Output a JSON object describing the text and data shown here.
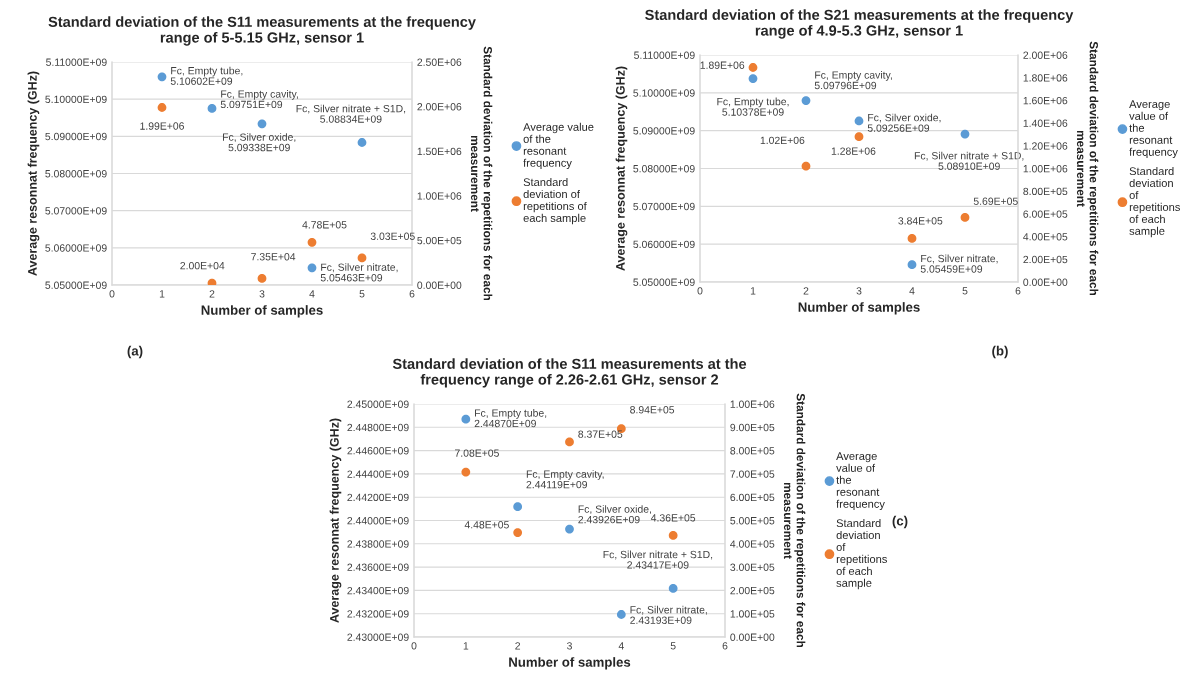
{
  "chart_data": [
    {
      "type": "scatter",
      "title": "Standard deviation of the S11 measurements at the frequency range of 5-5.15 GHz, sensor 1",
      "xlabel": "Number of samples",
      "ylabel": "Average resonnat frequency (GHz)",
      "y2label": "Standard deviation of the repetitions for each measurement",
      "annotations": [
        "(a)"
      ],
      "x": [
        1,
        2,
        3,
        4,
        5
      ],
      "series": [
        {
          "name": "Average value of the resonant frequency",
          "color": "#5b9bd5",
          "values": [
            5106020000,
            5097510000,
            5093380000,
            5054630000,
            5088340000
          ],
          "value_labels": [
            "Fc, Empty tube,\n5.10602E+09",
            "Fc, Empty cavity,\n5.09751E+09",
            "Fc, Silver oxide,\n5.09338E+09",
            "Fc, Silver nitrate,\n5.05463E+09",
            "Fc, Silver nitrate + S1D,\n5.08834E+09"
          ]
        },
        {
          "name": "Standard deviation of repetitions of each sample",
          "color": "#ed7d31",
          "axis": "y2",
          "values": [
            1990000,
            20000,
            73500,
            478000,
            303000
          ],
          "value_labels": [
            "1.99E+06",
            "2.00E+04",
            "7.35E+04",
            "4.78E+05",
            "3.03E+05"
          ]
        }
      ],
      "xlim": [
        0,
        6
      ],
      "xticks": [
        0,
        1,
        2,
        3,
        4,
        5,
        6
      ],
      "ylim": [
        5050000000,
        5110000000
      ],
      "yticks": [
        {
          "value": 5050000000,
          "label": "5.05000E+09"
        },
        {
          "value": 5060000000,
          "label": "5.06000E+09"
        },
        {
          "value": 5070000000,
          "label": "5.07000E+09"
        },
        {
          "value": 5080000000,
          "label": "5.08000E+09"
        },
        {
          "value": 5090000000,
          "label": "5.09000E+09"
        },
        {
          "value": 5100000000,
          "label": "5.10000E+09"
        },
        {
          "value": 5110000000,
          "label": "5.11000E+09"
        }
      ],
      "y2lim": [
        0,
        2500000
      ],
      "y2ticks": [
        {
          "value": 0,
          "label": "0.00E+00"
        },
        {
          "value": 500000,
          "label": "5.00E+05"
        },
        {
          "value": 1000000,
          "label": "1.00E+06"
        },
        {
          "value": 1500000,
          "label": "1.50E+06"
        },
        {
          "value": 2000000,
          "label": "2.00E+06"
        },
        {
          "value": 2500000,
          "label": "2.50E+06"
        }
      ],
      "grid": "y",
      "legend": "right",
      "marker": "circle"
    },
    {
      "type": "scatter",
      "title": "Standard deviation of the S21 measurements at the frequency range of 4.9-5.3 GHz, sensor 1",
      "xlabel": "Number of samples",
      "ylabel": "Average resonnat frequency (GHz)",
      "y2label": "Standard deviation of the repetitions for each measurement",
      "annotations": [
        "(b)"
      ],
      "x": [
        1,
        2,
        3,
        4,
        5
      ],
      "series": [
        {
          "name": "Average value of the resonant frequency",
          "color": "#5b9bd5",
          "values": [
            5103780000,
            5097960000,
            5092560000,
            5054590000,
            5089100000
          ],
          "value_labels": [
            "Fc, Empty tube,\n5.10378E+09",
            "Fc, Empty cavity,\n5.09796E+09",
            "Fc, Silver oxide,\n5.09256E+09",
            "Fc, Silver nitrate,\n5.05459E+09",
            "Fc, Silver nitrate + S1D,\n5.08910E+09"
          ]
        },
        {
          "name": "Standard deviation of repetitions of each sample",
          "color": "#ed7d31",
          "axis": "y2",
          "values": [
            1890000,
            1020000,
            1280000,
            384000,
            569000
          ],
          "value_labels": [
            "1.89E+06",
            "1.02E+06",
            "1.28E+06",
            "3.84E+05",
            "5.69E+05"
          ]
        }
      ],
      "xlim": [
        0,
        6
      ],
      "xticks": [
        0,
        1,
        2,
        3,
        4,
        5,
        6
      ],
      "ylim": [
        5050000000,
        5110000000
      ],
      "yticks": [
        {
          "value": 5050000000,
          "label": "5.05000E+09"
        },
        {
          "value": 5060000000,
          "label": "5.06000E+09"
        },
        {
          "value": 5070000000,
          "label": "5.07000E+09"
        },
        {
          "value": 5080000000,
          "label": "5.08000E+09"
        },
        {
          "value": 5090000000,
          "label": "5.09000E+09"
        },
        {
          "value": 5100000000,
          "label": "5.10000E+09"
        },
        {
          "value": 5110000000,
          "label": "5.11000E+09"
        }
      ],
      "y2lim": [
        0,
        2000000
      ],
      "y2ticks": [
        {
          "value": 0,
          "label": "0.00E+00"
        },
        {
          "value": 200000,
          "label": "2.00E+05"
        },
        {
          "value": 400000,
          "label": "4.00E+05"
        },
        {
          "value": 600000,
          "label": "6.00E+05"
        },
        {
          "value": 800000,
          "label": "8.00E+05"
        },
        {
          "value": 1000000,
          "label": "1.00E+06"
        },
        {
          "value": 1200000,
          "label": "1.20E+06"
        },
        {
          "value": 1400000,
          "label": "1.40E+06"
        },
        {
          "value": 1600000,
          "label": "1.60E+06"
        },
        {
          "value": 1800000,
          "label": "1.80E+06"
        },
        {
          "value": 2000000,
          "label": "2.00E+06"
        }
      ],
      "grid": "y",
      "legend": "right",
      "marker": "circle"
    },
    {
      "type": "scatter",
      "title": "Standard deviation of the S11 measurements at the frequency range of 2.26-2.61 GHz, sensor 2",
      "xlabel": "Number of samples",
      "ylabel": "Average resonnat frequency (GHz)",
      "y2label": "Standard deviation of the repetitions for each measurement",
      "annotations": [
        "(c)"
      ],
      "x": [
        1,
        2,
        3,
        4,
        5
      ],
      "series": [
        {
          "name": "Average value of the resonant frequency",
          "color": "#5b9bd5",
          "values": [
            2448700000,
            2441190000,
            2439260000,
            2431930000,
            2434170000
          ],
          "value_labels": [
            "Fc, Empty tube,\n2.44870E+09",
            "Fc, Empty cavity,\n2.44119E+09",
            "Fc, Silver oxide,\n2.43926E+09",
            "Fc, Silver nitrate,\n2.43193E+09",
            "Fc, Silver nitrate + S1D,\n2.43417E+09"
          ]
        },
        {
          "name": "Standard deviation of repetitions of each sample",
          "color": "#ed7d31",
          "axis": "y2",
          "values": [
            708000,
            448000,
            837000,
            894000,
            436000
          ],
          "value_labels": [
            "7.08E+05",
            "4.48E+05",
            "8.37E+05",
            "8.94E+05",
            "4.36E+05"
          ]
        }
      ],
      "xlim": [
        0,
        6
      ],
      "xticks": [
        0,
        1,
        2,
        3,
        4,
        5,
        6
      ],
      "ylim": [
        2430000000,
        2450000000
      ],
      "yticks": [
        {
          "value": 2430000000,
          "label": "2.43000E+09"
        },
        {
          "value": 2432000000,
          "label": "2.43200E+09"
        },
        {
          "value": 2434000000,
          "label": "2.43400E+09"
        },
        {
          "value": 2436000000,
          "label": "2.43600E+09"
        },
        {
          "value": 2438000000,
          "label": "2.43800E+09"
        },
        {
          "value": 2440000000,
          "label": "2.44000E+09"
        },
        {
          "value": 2442000000,
          "label": "2.44200E+09"
        },
        {
          "value": 2444000000,
          "label": "2.44400E+09"
        },
        {
          "value": 2446000000,
          "label": "2.44600E+09"
        },
        {
          "value": 2448000000,
          "label": "2.44800E+09"
        },
        {
          "value": 2450000000,
          "label": "2.45000E+09"
        }
      ],
      "y2lim": [
        0,
        1000000
      ],
      "y2ticks": [
        {
          "value": 0,
          "label": "0.00E+00"
        },
        {
          "value": 100000,
          "label": "1.00E+05"
        },
        {
          "value": 200000,
          "label": "2.00E+05"
        },
        {
          "value": 300000,
          "label": "3.00E+05"
        },
        {
          "value": 400000,
          "label": "4.00E+05"
        },
        {
          "value": 500000,
          "label": "5.00E+05"
        },
        {
          "value": 600000,
          "label": "6.00E+05"
        },
        {
          "value": 700000,
          "label": "7.00E+05"
        },
        {
          "value": 800000,
          "label": "8.00E+05"
        },
        {
          "value": 900000,
          "label": "9.00E+05"
        },
        {
          "value": 1000000,
          "label": "1.00E+06"
        }
      ],
      "grid": "y",
      "legend": "right",
      "marker": "circle"
    }
  ]
}
